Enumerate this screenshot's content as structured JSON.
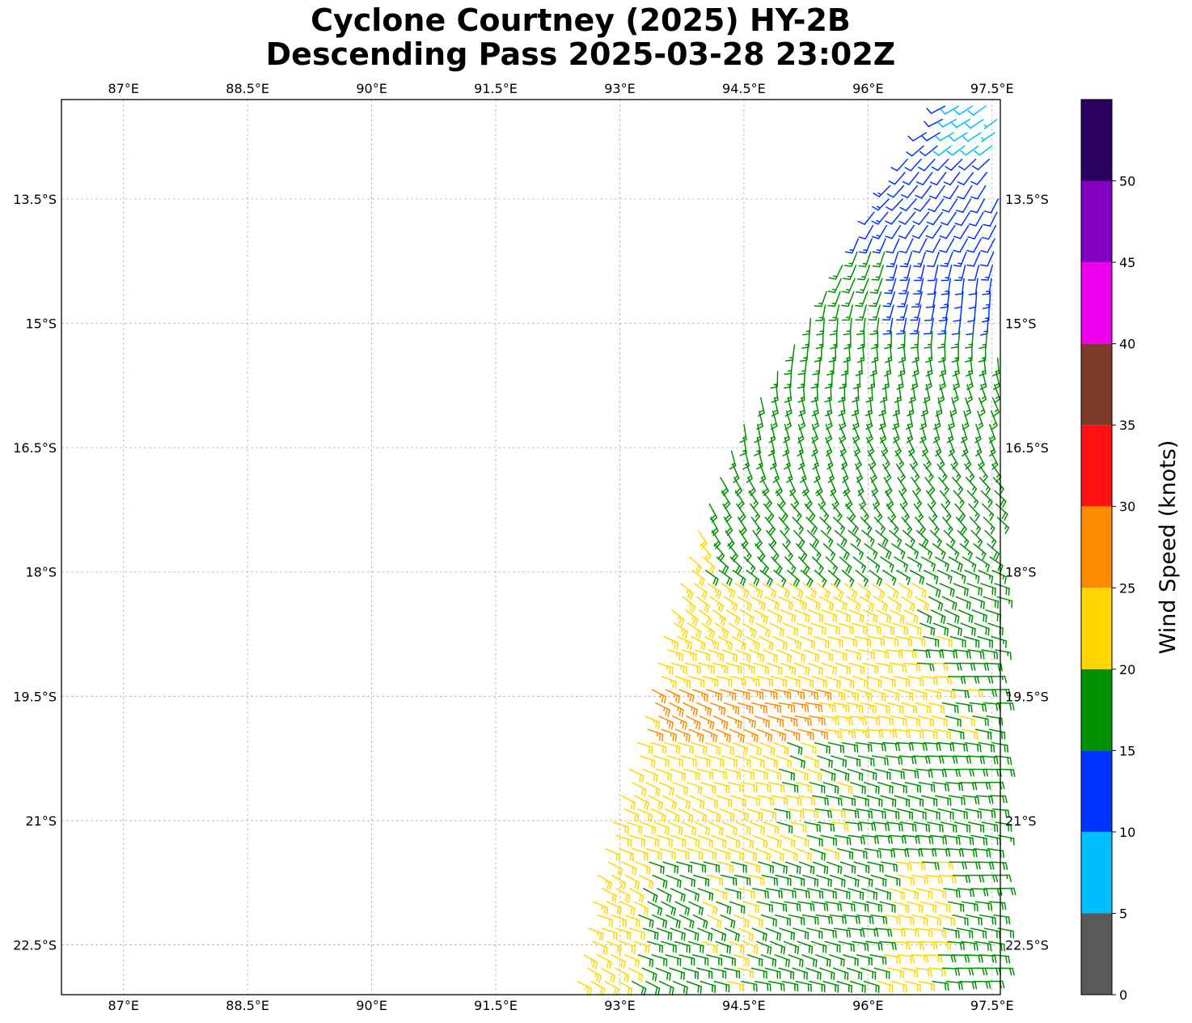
{
  "title": {
    "line1": "Cyclone Courtney (2025) HY-2B",
    "line2": "Descending Pass 2025-03-28 23:02Z"
  },
  "map": {
    "lon_range": [
      86.25,
      97.6
    ],
    "lat_range": [
      -23.1,
      -12.3
    ],
    "lon_ticks": [
      {
        "value": 87.0,
        "label": "87°E"
      },
      {
        "value": 88.5,
        "label": "88.5°E"
      },
      {
        "value": 90.0,
        "label": "90°E"
      },
      {
        "value": 91.5,
        "label": "91.5°E"
      },
      {
        "value": 93.0,
        "label": "93°E"
      },
      {
        "value": 94.5,
        "label": "94.5°E"
      },
      {
        "value": 96.0,
        "label": "96°E"
      },
      {
        "value": 97.5,
        "label": "97.5°E"
      }
    ],
    "lat_ticks": [
      {
        "value": -13.5,
        "label": "13.5°S"
      },
      {
        "value": -15.0,
        "label": "15°S"
      },
      {
        "value": -16.5,
        "label": "16.5°S"
      },
      {
        "value": -18.0,
        "label": "18°S"
      },
      {
        "value": -19.5,
        "label": "19.5°S"
      },
      {
        "value": -21.0,
        "label": "21°S"
      },
      {
        "value": -22.5,
        "label": "22.5°S"
      }
    ],
    "grid": true,
    "swath": {
      "west_edge": [
        [
          96.9,
          -12.35
        ],
        [
          96.3,
          -13.2
        ],
        [
          95.7,
          -14.2
        ],
        [
          95.1,
          -15.2
        ],
        [
          94.4,
          -16.3
        ],
        [
          93.9,
          -17.5
        ],
        [
          93.5,
          -18.7
        ],
        [
          93.3,
          -19.6
        ],
        [
          93.0,
          -20.6
        ],
        [
          92.7,
          -21.6
        ],
        [
          92.5,
          -22.7
        ],
        [
          92.4,
          -23.1
        ]
      ],
      "east_limit": 97.58
    },
    "wind_regions": [
      {
        "lat_from": -12.3,
        "lat_to": -13.0,
        "speeds": [
          [
            96.0,
            14
          ],
          [
            96.6,
            12
          ],
          [
            97.3,
            8
          ]
        ]
      },
      {
        "lat_from": -13.0,
        "lat_to": -14.0,
        "speeds": [
          [
            95.3,
            16
          ],
          [
            96.0,
            13
          ],
          [
            97.2,
            11
          ]
        ]
      },
      {
        "lat_from": -14.0,
        "lat_to": -15.0,
        "speeds": [
          [
            95.0,
            17
          ],
          [
            96.0,
            16
          ],
          [
            96.6,
            13
          ],
          [
            97.5,
            12
          ]
        ]
      },
      {
        "lat_from": -15.0,
        "lat_to": -16.8,
        "speeds": [
          [
            94.3,
            17
          ],
          [
            95.5,
            16
          ],
          [
            96.5,
            16
          ],
          [
            97.5,
            16
          ]
        ]
      },
      {
        "lat_from": -16.8,
        "lat_to": -18.0,
        "speeds": [
          [
            93.8,
            22
          ],
          [
            94.4,
            18
          ],
          [
            96.0,
            17
          ],
          [
            97.5,
            17
          ]
        ]
      },
      {
        "lat_from": -18.0,
        "lat_to": -19.3,
        "speeds": [
          [
            93.4,
            23
          ],
          [
            95.0,
            22
          ],
          [
            96.3,
            21
          ],
          [
            97.0,
            19
          ],
          [
            97.5,
            18
          ]
        ]
      },
      {
        "lat_from": -19.3,
        "lat_to": -20.0,
        "speeds": [
          [
            93.0,
            25
          ],
          [
            94.0,
            26
          ],
          [
            95.0,
            26
          ],
          [
            96.5,
            21
          ],
          [
            97.5,
            19
          ]
        ]
      },
      {
        "lat_from": -20.0,
        "lat_to": -21.5,
        "speeds": [
          [
            92.8,
            22
          ],
          [
            94.5,
            21
          ],
          [
            96.0,
            19
          ],
          [
            97.5,
            18
          ]
        ]
      },
      {
        "lat_from": -21.5,
        "lat_to": -23.1,
        "speeds": [
          [
            92.5,
            23
          ],
          [
            93.5,
            19
          ],
          [
            94.5,
            20
          ],
          [
            95.5,
            18
          ],
          [
            96.5,
            21
          ],
          [
            97.5,
            18
          ]
        ]
      }
    ],
    "wind_direction_note_deg": [
      [
        -12.3,
        200
      ],
      [
        -15.0,
        260
      ],
      [
        -17.0,
        300
      ],
      [
        -19.0,
        345
      ],
      [
        -21.0,
        345
      ],
      [
        -23.0,
        345
      ]
    ]
  },
  "colorbar": {
    "label": "Wind Speed (knots)",
    "bins": [
      {
        "from": 0,
        "to": 5,
        "color": "#595959"
      },
      {
        "from": 5,
        "to": 10,
        "color": "#00bfff"
      },
      {
        "from": 10,
        "to": 15,
        "color": "#0033ff"
      },
      {
        "from": 15,
        "to": 20,
        "color": "#009100"
      },
      {
        "from": 20,
        "to": 25,
        "color": "#ffd700"
      },
      {
        "from": 25,
        "to": 30,
        "color": "#ff8c00"
      },
      {
        "from": 30,
        "to": 35,
        "color": "#ff1010"
      },
      {
        "from": 35,
        "to": 40,
        "color": "#7f3b2a"
      },
      {
        "from": 40,
        "to": 45,
        "color": "#ee00ee"
      },
      {
        "from": 45,
        "to": 50,
        "color": "#8200c0"
      },
      {
        "from": 50,
        "to": 55,
        "color": "#2a0060"
      }
    ],
    "ticks": [
      "0",
      "5",
      "10",
      "15",
      "20",
      "25",
      "30",
      "35",
      "40",
      "45",
      "50"
    ]
  }
}
